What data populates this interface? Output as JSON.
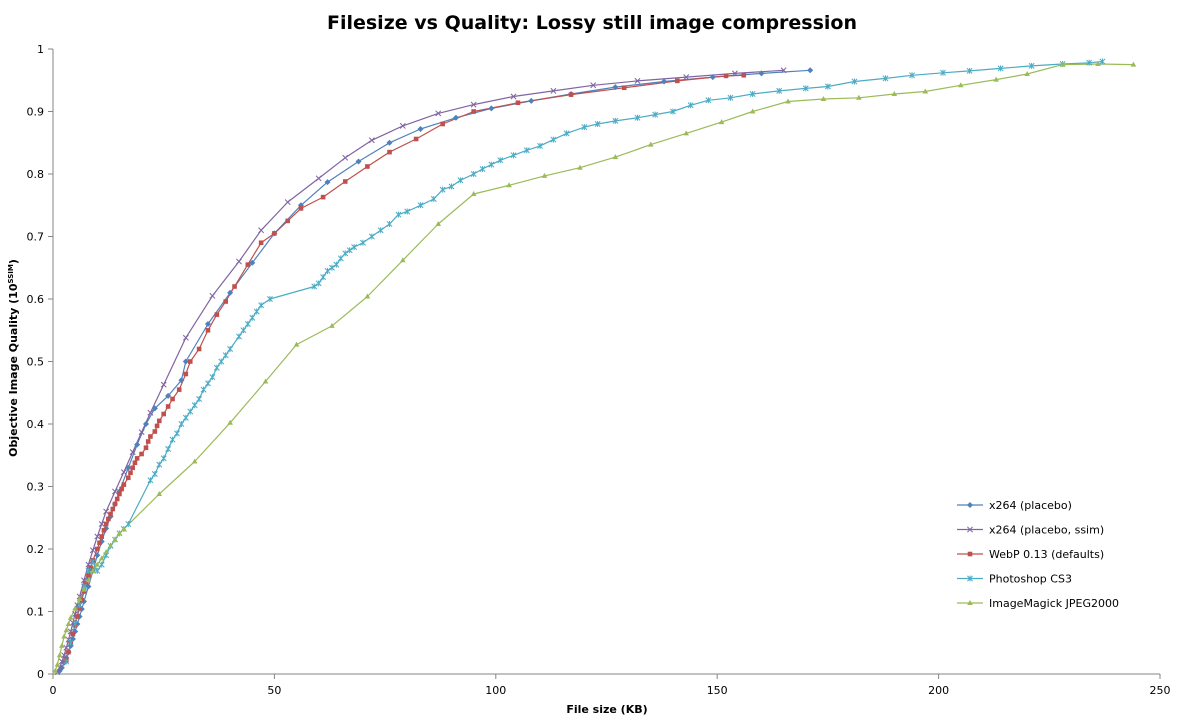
{
  "chart_data": {
    "type": "line",
    "title": "Filesize vs Quality: Lossy still image compression",
    "xlabel": "File size (KB)",
    "ylabel_main": "Objective Image Quality (10",
    "ylabel_sup": "SSIM",
    "ylabel_end": ")",
    "xlim": [
      0,
      250
    ],
    "ylim": [
      0,
      1
    ],
    "x_ticks": [
      "0",
      "50",
      "100",
      "150",
      "200",
      "250"
    ],
    "y_ticks": [
      "0",
      "0.1",
      "0.2",
      "0.3",
      "0.4",
      "0.5",
      "0.6",
      "0.7",
      "0.8",
      "0.9",
      "1"
    ],
    "grid": false,
    "legend_position": "right",
    "series": [
      {
        "name": "x264 (placebo)",
        "color": "#4f81bd",
        "marker": "diamond",
        "points": [
          [
            1.5,
            0.005
          ],
          [
            2,
            0.01
          ],
          [
            2.5,
            0.018
          ],
          [
            3,
            0.026
          ],
          [
            3.5,
            0.035
          ],
          [
            4,
            0.045
          ],
          [
            4.5,
            0.056
          ],
          [
            5,
            0.068
          ],
          [
            5.5,
            0.08
          ],
          [
            6,
            0.092
          ],
          [
            6.5,
            0.104
          ],
          [
            7,
            0.116
          ],
          [
            8,
            0.14
          ],
          [
            9,
            0.165
          ],
          [
            10,
            0.19
          ],
          [
            11,
            0.212
          ],
          [
            12,
            0.233
          ],
          [
            13,
            0.252
          ],
          [
            14,
            0.272
          ],
          [
            15,
            0.292
          ],
          [
            17,
            0.33
          ],
          [
            19,
            0.367
          ],
          [
            21,
            0.4
          ],
          [
            23,
            0.425
          ],
          [
            26,
            0.445
          ],
          [
            29,
            0.47
          ],
          [
            30,
            0.5
          ],
          [
            35,
            0.56
          ],
          [
            40,
            0.61
          ],
          [
            45,
            0.658
          ],
          [
            50,
            0.705
          ],
          [
            56,
            0.75
          ],
          [
            62,
            0.787
          ],
          [
            69,
            0.82
          ],
          [
            76,
            0.85
          ],
          [
            83,
            0.872
          ],
          [
            91,
            0.89
          ],
          [
            99,
            0.905
          ],
          [
            108,
            0.917
          ],
          [
            117,
            0.928
          ],
          [
            127,
            0.939
          ],
          [
            138,
            0.948
          ],
          [
            149,
            0.955
          ],
          [
            160,
            0.961
          ],
          [
            171,
            0.966
          ]
        ]
      },
      {
        "name": "x264 (placebo, ssim)",
        "color": "#8064a2",
        "marker": "x",
        "points": [
          [
            1,
            0.003
          ],
          [
            1.5,
            0.01
          ],
          [
            2,
            0.02
          ],
          [
            2.5,
            0.03
          ],
          [
            3,
            0.042
          ],
          [
            3.5,
            0.055
          ],
          [
            4,
            0.068
          ],
          [
            4.5,
            0.082
          ],
          [
            5,
            0.096
          ],
          [
            5.5,
            0.11
          ],
          [
            6,
            0.124
          ],
          [
            7,
            0.15
          ],
          [
            8,
            0.175
          ],
          [
            9,
            0.198
          ],
          [
            10,
            0.22
          ],
          [
            11,
            0.24
          ],
          [
            12,
            0.26
          ],
          [
            14,
            0.292
          ],
          [
            16,
            0.323
          ],
          [
            18,
            0.355
          ],
          [
            20,
            0.387
          ],
          [
            22,
            0.418
          ],
          [
            25,
            0.463
          ],
          [
            30,
            0.538
          ],
          [
            36,
            0.605
          ],
          [
            42,
            0.66
          ],
          [
            47,
            0.71
          ],
          [
            53,
            0.755
          ],
          [
            60,
            0.793
          ],
          [
            66,
            0.826
          ],
          [
            72,
            0.854
          ],
          [
            79,
            0.877
          ],
          [
            87,
            0.897
          ],
          [
            95,
            0.911
          ],
          [
            104,
            0.924
          ],
          [
            113,
            0.933
          ],
          [
            122,
            0.942
          ],
          [
            132,
            0.949
          ],
          [
            143,
            0.955
          ],
          [
            154,
            0.961
          ],
          [
            165,
            0.966
          ]
        ]
      },
      {
        "name": "WebP 0.13 (defaults)",
        "color": "#c0504d",
        "marker": "square",
        "points": [
          [
            3,
            0.022
          ],
          [
            3.5,
            0.035
          ],
          [
            4,
            0.05
          ],
          [
            4.5,
            0.064
          ],
          [
            5,
            0.078
          ],
          [
            5.5,
            0.092
          ],
          [
            6,
            0.105
          ],
          [
            6.5,
            0.118
          ],
          [
            7,
            0.132
          ],
          [
            7.5,
            0.145
          ],
          [
            8,
            0.158
          ],
          [
            8.5,
            0.17
          ],
          [
            9,
            0.182
          ],
          [
            10,
            0.2
          ],
          [
            10.5,
            0.21
          ],
          [
            11,
            0.22
          ],
          [
            11.5,
            0.23
          ],
          [
            12,
            0.24
          ],
          [
            12.5,
            0.248
          ],
          [
            13,
            0.256
          ],
          [
            13.5,
            0.264
          ],
          [
            14,
            0.272
          ],
          [
            14.5,
            0.28
          ],
          [
            15,
            0.288
          ],
          [
            15.5,
            0.296
          ],
          [
            16,
            0.303
          ],
          [
            17,
            0.314
          ],
          [
            17.5,
            0.322
          ],
          [
            18,
            0.33
          ],
          [
            18.5,
            0.338
          ],
          [
            19,
            0.345
          ],
          [
            20,
            0.352
          ],
          [
            21,
            0.362
          ],
          [
            21.5,
            0.372
          ],
          [
            22,
            0.38
          ],
          [
            23,
            0.388
          ],
          [
            23.5,
            0.397
          ],
          [
            24,
            0.405
          ],
          [
            25,
            0.416
          ],
          [
            26,
            0.428
          ],
          [
            27,
            0.44
          ],
          [
            28.5,
            0.455
          ],
          [
            30,
            0.48
          ],
          [
            31,
            0.5
          ],
          [
            33,
            0.52
          ],
          [
            35,
            0.55
          ],
          [
            37,
            0.575
          ],
          [
            39,
            0.596
          ],
          [
            41,
            0.62
          ],
          [
            44,
            0.655
          ],
          [
            47,
            0.69
          ],
          [
            50,
            0.705
          ],
          [
            53,
            0.725
          ],
          [
            56,
            0.745
          ],
          [
            61,
            0.763
          ],
          [
            66,
            0.788
          ],
          [
            71,
            0.812
          ],
          [
            76,
            0.835
          ],
          [
            82,
            0.856
          ],
          [
            88,
            0.88
          ],
          [
            95,
            0.9
          ],
          [
            105,
            0.914
          ],
          [
            117,
            0.927
          ],
          [
            129,
            0.938
          ],
          [
            141,
            0.949
          ],
          [
            152,
            0.957
          ],
          [
            156,
            0.958
          ]
        ]
      },
      {
        "name": "Photoshop CS3",
        "color": "#4bacc6",
        "marker": "star",
        "points": [
          [
            3,
            0.02
          ],
          [
            4,
            0.05
          ],
          [
            5,
            0.08
          ],
          [
            6,
            0.11
          ],
          [
            7,
            0.14
          ],
          [
            8,
            0.165
          ],
          [
            9,
            0.18
          ],
          [
            10,
            0.165
          ],
          [
            11,
            0.175
          ],
          [
            12,
            0.19
          ],
          [
            13,
            0.205
          ],
          [
            14,
            0.215
          ],
          [
            15,
            0.225
          ],
          [
            16,
            0.232
          ],
          [
            17,
            0.24
          ],
          [
            22,
            0.31
          ],
          [
            23,
            0.32
          ],
          [
            24,
            0.335
          ],
          [
            25,
            0.345
          ],
          [
            26,
            0.36
          ],
          [
            27,
            0.375
          ],
          [
            28,
            0.385
          ],
          [
            29,
            0.4
          ],
          [
            30,
            0.41
          ],
          [
            31,
            0.42
          ],
          [
            32,
            0.43
          ],
          [
            33,
            0.44
          ],
          [
            34,
            0.455
          ],
          [
            35,
            0.465
          ],
          [
            36,
            0.475
          ],
          [
            37,
            0.49
          ],
          [
            38,
            0.5
          ],
          [
            39,
            0.51
          ],
          [
            40,
            0.52
          ],
          [
            42,
            0.54
          ],
          [
            43,
            0.55
          ],
          [
            44,
            0.56
          ],
          [
            45,
            0.57
          ],
          [
            46,
            0.58
          ],
          [
            47,
            0.59
          ],
          [
            49,
            0.6
          ],
          [
            59,
            0.62
          ],
          [
            60,
            0.625
          ],
          [
            61,
            0.635
          ],
          [
            62,
            0.645
          ],
          [
            63,
            0.65
          ],
          [
            64,
            0.655
          ],
          [
            65,
            0.665
          ],
          [
            66,
            0.673
          ],
          [
            67,
            0.678
          ],
          [
            68,
            0.683
          ],
          [
            70,
            0.69
          ],
          [
            72,
            0.7
          ],
          [
            74,
            0.71
          ],
          [
            76,
            0.72
          ],
          [
            78,
            0.735
          ],
          [
            80,
            0.74
          ],
          [
            83,
            0.75
          ],
          [
            86,
            0.76
          ],
          [
            88,
            0.775
          ],
          [
            90,
            0.78
          ],
          [
            92,
            0.79
          ],
          [
            95,
            0.8
          ],
          [
            97,
            0.808
          ],
          [
            99,
            0.815
          ],
          [
            101,
            0.822
          ],
          [
            104,
            0.83
          ],
          [
            107,
            0.838
          ],
          [
            110,
            0.845
          ],
          [
            113,
            0.855
          ],
          [
            116,
            0.865
          ],
          [
            120,
            0.875
          ],
          [
            123,
            0.88
          ],
          [
            127,
            0.885
          ],
          [
            132,
            0.89
          ],
          [
            136,
            0.895
          ],
          [
            140,
            0.9
          ],
          [
            144,
            0.91
          ],
          [
            148,
            0.918
          ],
          [
            153,
            0.922
          ],
          [
            158,
            0.928
          ],
          [
            164,
            0.933
          ],
          [
            170,
            0.937
          ],
          [
            175,
            0.94
          ],
          [
            181,
            0.948
          ],
          [
            188,
            0.953
          ],
          [
            194,
            0.958
          ],
          [
            201,
            0.962
          ],
          [
            207,
            0.965
          ],
          [
            214,
            0.969
          ],
          [
            221,
            0.973
          ],
          [
            228,
            0.976
          ],
          [
            234,
            0.978
          ],
          [
            237,
            0.98
          ]
        ]
      },
      {
        "name": "ImageMagick JPEG2000",
        "color": "#9bbb59",
        "marker": "triangle",
        "points": [
          [
            0.5,
            0.005
          ],
          [
            1,
            0.015
          ],
          [
            1.5,
            0.03
          ],
          [
            2,
            0.045
          ],
          [
            2.5,
            0.06
          ],
          [
            3,
            0.07
          ],
          [
            3.5,
            0.08
          ],
          [
            4,
            0.09
          ],
          [
            5,
            0.105
          ],
          [
            6,
            0.12
          ],
          [
            7,
            0.135
          ],
          [
            8,
            0.15
          ],
          [
            9,
            0.165
          ],
          [
            10,
            0.175
          ],
          [
            11,
            0.185
          ],
          [
            12,
            0.195
          ],
          [
            13,
            0.205
          ],
          [
            14,
            0.215
          ],
          [
            15,
            0.225
          ],
          [
            16,
            0.232
          ],
          [
            24,
            0.288
          ],
          [
            32,
            0.34
          ],
          [
            40,
            0.402
          ],
          [
            48,
            0.468
          ],
          [
            55,
            0.527
          ],
          [
            63,
            0.557
          ],
          [
            71,
            0.604
          ],
          [
            79,
            0.662
          ],
          [
            87,
            0.72
          ],
          [
            95,
            0.768
          ],
          [
            103,
            0.782
          ],
          [
            111,
            0.797
          ],
          [
            119,
            0.81
          ],
          [
            127,
            0.827
          ],
          [
            135,
            0.847
          ],
          [
            143,
            0.865
          ],
          [
            151,
            0.883
          ],
          [
            158,
            0.9
          ],
          [
            166,
            0.916
          ],
          [
            174,
            0.92
          ],
          [
            182,
            0.922
          ],
          [
            190,
            0.928
          ],
          [
            197,
            0.932
          ],
          [
            205,
            0.942
          ],
          [
            213,
            0.951
          ],
          [
            220,
            0.96
          ],
          [
            228,
            0.975
          ],
          [
            236,
            0.976
          ],
          [
            244,
            0.975
          ]
        ]
      }
    ]
  }
}
